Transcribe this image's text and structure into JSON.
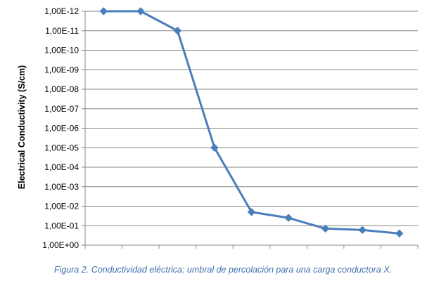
{
  "caption": "Figura 2. Conductividad eléctrica: umbral de percolación para una carga conductora X.",
  "chart_data": {
    "type": "line",
    "title": "",
    "xlabel": "",
    "ylabel": "Electrical Conductivity (S/cm)",
    "y_tick_labels": [
      "1,00E+00",
      "1,00E-01",
      "1,00E-02",
      "1,00E-03",
      "1,00E-04",
      "1,00E-05",
      "1,00E-06",
      "1,00E-07",
      "1,00E-08",
      "1,00E-09",
      "1,00E-10",
      "1,00E-11",
      "1,00E-12"
    ],
    "ylim": [
      0,
      12
    ],
    "x_category_count": 9,
    "grid": true,
    "legend": "none",
    "series": [
      {
        "color": "#4a7ebb",
        "marker": "diamond",
        "values": [
          12,
          12,
          11,
          5,
          1.7,
          1.4,
          0.85,
          0.78,
          0.6
        ]
      }
    ]
  }
}
